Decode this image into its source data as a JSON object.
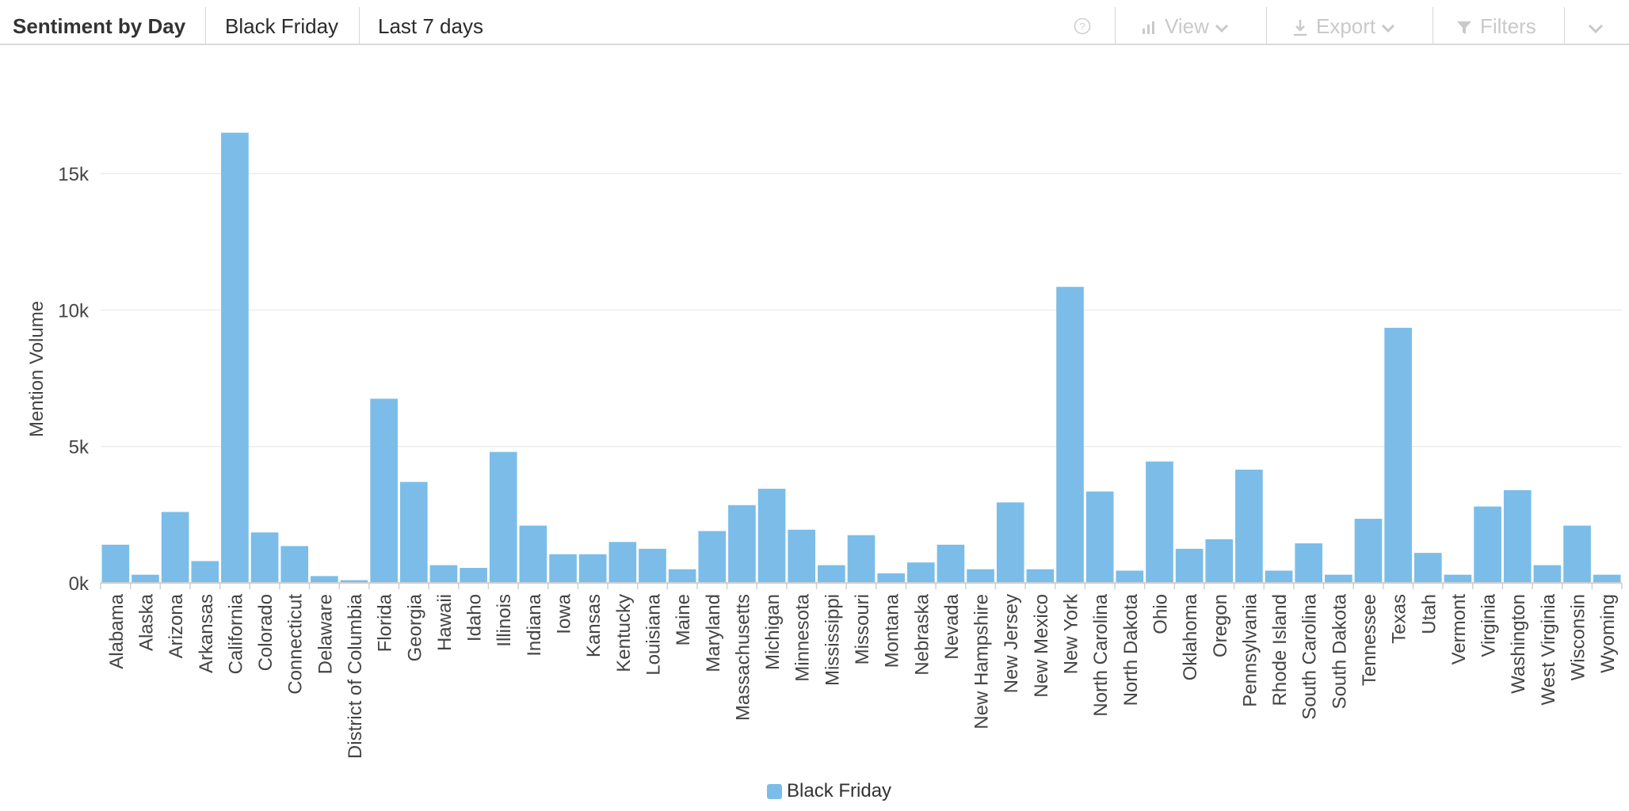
{
  "header": {
    "title": "Sentiment by Day",
    "topic": "Black Friday",
    "range": "Last 7 days",
    "view_label": "View",
    "export_label": "Export",
    "filters_label": "Filters"
  },
  "colors": {
    "bar": "#7bbde8",
    "grid": "#ececec",
    "axis": "#cfcfcf",
    "text": "#444444",
    "toolbar_muted": "#c9c9c9"
  },
  "icons": [
    "help-icon",
    "bar-chart-icon",
    "chevron-down-icon",
    "download-icon",
    "filter-icon"
  ],
  "legend": {
    "label": "Black Friday"
  },
  "chart_data": {
    "type": "bar",
    "ylabel": "Mention Volume",
    "xlabel": "",
    "ylim": [
      0,
      17300
    ],
    "yticks": [
      0,
      5000,
      10000,
      15000
    ],
    "ytick_labels": [
      "0k",
      "5k",
      "10k",
      "15k"
    ],
    "grid": true,
    "legend_position": "bottom",
    "categories": [
      "Alabama",
      "Alaska",
      "Arizona",
      "Arkansas",
      "California",
      "Colorado",
      "Connecticut",
      "Delaware",
      "District of Columbia",
      "Florida",
      "Georgia",
      "Hawaii",
      "Idaho",
      "Illinois",
      "Indiana",
      "Iowa",
      "Kansas",
      "Kentucky",
      "Louisiana",
      "Maine",
      "Maryland",
      "Massachusetts",
      "Michigan",
      "Minnesota",
      "Mississippi",
      "Missouri",
      "Montana",
      "Nebraska",
      "Nevada",
      "New Hampshire",
      "New Jersey",
      "New Mexico",
      "New York",
      "North Carolina",
      "North Dakota",
      "Ohio",
      "Oklahoma",
      "Oregon",
      "Pennsylvania",
      "Rhode Island",
      "South Carolina",
      "South Dakota",
      "Tennessee",
      "Texas",
      "Utah",
      "Vermont",
      "Virginia",
      "Washington",
      "West Virginia",
      "Wisconsin",
      "Wyoming"
    ],
    "series": [
      {
        "name": "Black Friday",
        "values": [
          1400,
          300,
          2600,
          800,
          16500,
          1850,
          1350,
          250,
          100,
          6750,
          3700,
          650,
          550,
          4800,
          2100,
          1050,
          1050,
          1500,
          1250,
          500,
          1900,
          2850,
          3450,
          1950,
          650,
          1750,
          350,
          750,
          1400,
          500,
          2950,
          500,
          10850,
          3350,
          450,
          4450,
          1250,
          1600,
          4150,
          450,
          1450,
          300,
          2350,
          9350,
          1100,
          300,
          2800,
          3400,
          650,
          2100,
          300
        ]
      }
    ]
  }
}
